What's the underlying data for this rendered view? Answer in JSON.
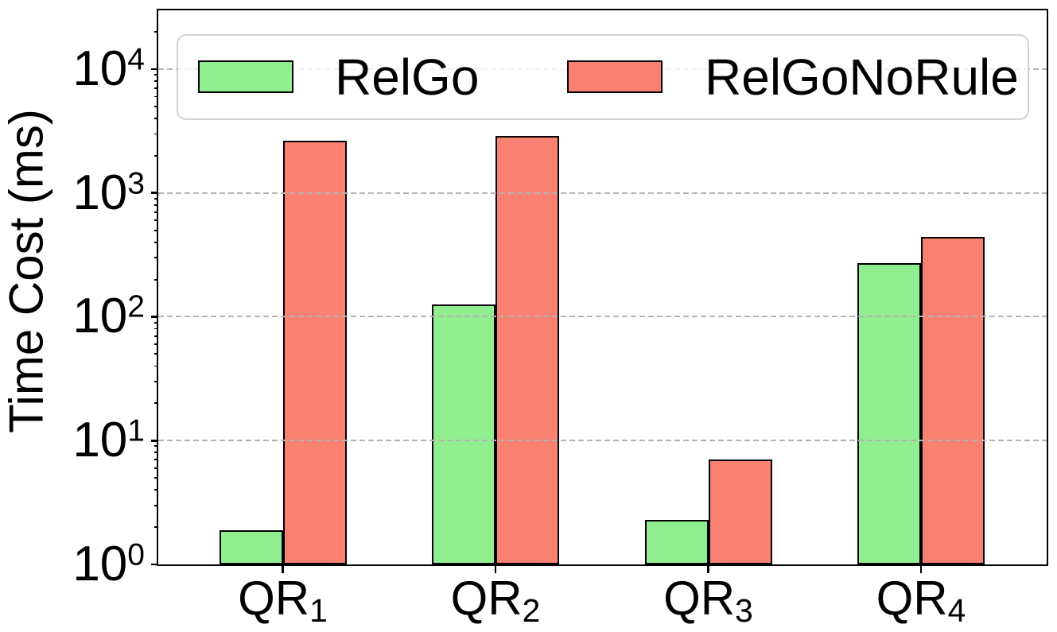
{
  "chart_data": {
    "type": "bar",
    "title": "",
    "ylabel": "Time Cost (ms)",
    "xlabel": "",
    "yscale": "log",
    "ylim": [
      1,
      30000
    ],
    "categories": [
      "QR1",
      "QR2",
      "QR3",
      "QR4"
    ],
    "categories_rich": [
      {
        "base": "QR",
        "sub": "1"
      },
      {
        "base": "QR",
        "sub": "2"
      },
      {
        "base": "QR",
        "sub": "3"
      },
      {
        "base": "QR",
        "sub": "4"
      }
    ],
    "series": [
      {
        "name": "RelGo",
        "color": "#90EE90",
        "edgecolor": "#000000",
        "values": [
          1.9,
          125,
          2.3,
          270
        ]
      },
      {
        "name": "RelGoNoRule",
        "color": "#FA8072",
        "edgecolor": "#000000",
        "values": [
          2650,
          2900,
          7,
          445
        ]
      }
    ],
    "yticks": {
      "base": "10",
      "exponents": [
        "0",
        "1",
        "2",
        "3",
        "4"
      ]
    },
    "grid": {
      "show": true,
      "axis": "y",
      "linestyle": "dashed",
      "color": "#b3b3b3",
      "at_exponents": [
        1,
        2,
        3,
        4
      ]
    },
    "legend": {
      "position": "upper center",
      "frame": true,
      "frame_color": "#d2d2d2",
      "entries": [
        "RelGo",
        "RelGoNoRule"
      ]
    }
  }
}
